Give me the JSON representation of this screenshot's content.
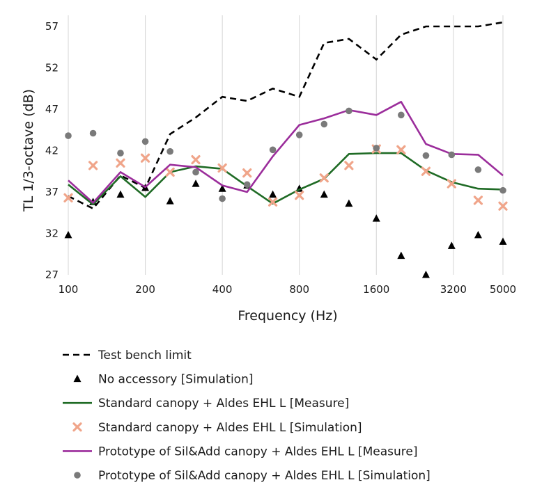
{
  "chart_data": {
    "type": "line",
    "title": "",
    "xlabel": "Frequency (Hz)",
    "ylabel": "TL 1/3-octave (dB)",
    "x_scale": "log",
    "ylim": [
      27,
      58
    ],
    "xlim": [
      100,
      5000
    ],
    "yticks": [
      27,
      32,
      37,
      42,
      47,
      52,
      57
    ],
    "xticks": [
      "100",
      "200",
      "400",
      "800",
      "1600",
      "3200",
      "5000"
    ],
    "xtick_values": [
      100,
      200,
      400,
      800,
      1600,
      3200,
      5000
    ],
    "x": [
      100,
      125,
      160,
      200,
      250,
      315,
      400,
      500,
      630,
      800,
      1000,
      1250,
      1600,
      2000,
      2500,
      3150,
      4000,
      5000
    ],
    "grid": "vertical",
    "legend_position": "bottom",
    "series": [
      {
        "name": "Test bench limit",
        "style": "dashed",
        "color": "#000000",
        "values": [
          36.5,
          35.0,
          39.0,
          37.5,
          44.0,
          46.0,
          48.5,
          48.0,
          49.5,
          48.5,
          55.0,
          55.5,
          53.0,
          56.0,
          57.0,
          57.0,
          57.0,
          57.5
        ]
      },
      {
        "name": "No accessory [Simulation]",
        "style": "triangle",
        "color": "#000000",
        "values": [
          31.8,
          35.8,
          36.7,
          37.5,
          35.9,
          38.0,
          37.4,
          37.8,
          36.7,
          37.4,
          36.7,
          35.6,
          33.8,
          29.3,
          27.0,
          30.5,
          31.8,
          31.0
        ]
      },
      {
        "name": "Standard canopy + Aldes EHL L [Measure]",
        "style": "line",
        "color": "#1f6b25",
        "values": [
          37.9,
          35.5,
          38.9,
          36.4,
          39.4,
          40.1,
          39.8,
          37.7,
          35.6,
          37.3,
          38.6,
          41.6,
          41.7,
          41.7,
          39.6,
          38.2,
          37.4,
          37.3
        ]
      },
      {
        "name": "Standard canopy + Aldes EHL L [Simulation]",
        "style": "cross",
        "color": "#f0a58a",
        "values": [
          36.3,
          40.2,
          40.5,
          41.1,
          39.4,
          40.9,
          39.9,
          39.3,
          35.8,
          36.6,
          38.7,
          40.2,
          42.2,
          42.1,
          39.5,
          38.0,
          36.0,
          35.3
        ]
      },
      {
        "name": "Prototype of Sil&Add canopy + Aldes EHL L [Measure]",
        "style": "line",
        "color": "#9b2d9b",
        "values": [
          38.4,
          35.7,
          39.4,
          37.6,
          40.3,
          40.0,
          37.8,
          37.0,
          41.3,
          45.1,
          45.9,
          46.9,
          46.3,
          47.9,
          42.8,
          41.6,
          41.5,
          39.0
        ]
      },
      {
        "name": "Prototype of Sil&Add canopy + Aldes EHL L [Simulation]",
        "style": "dot",
        "color": "#7a7a7a",
        "values": [
          43.8,
          44.1,
          41.7,
          43.1,
          41.9,
          39.4,
          36.2,
          37.9,
          42.1,
          43.9,
          45.2,
          46.8,
          42.3,
          46.3,
          41.4,
          41.5,
          39.7,
          37.2
        ]
      }
    ]
  }
}
